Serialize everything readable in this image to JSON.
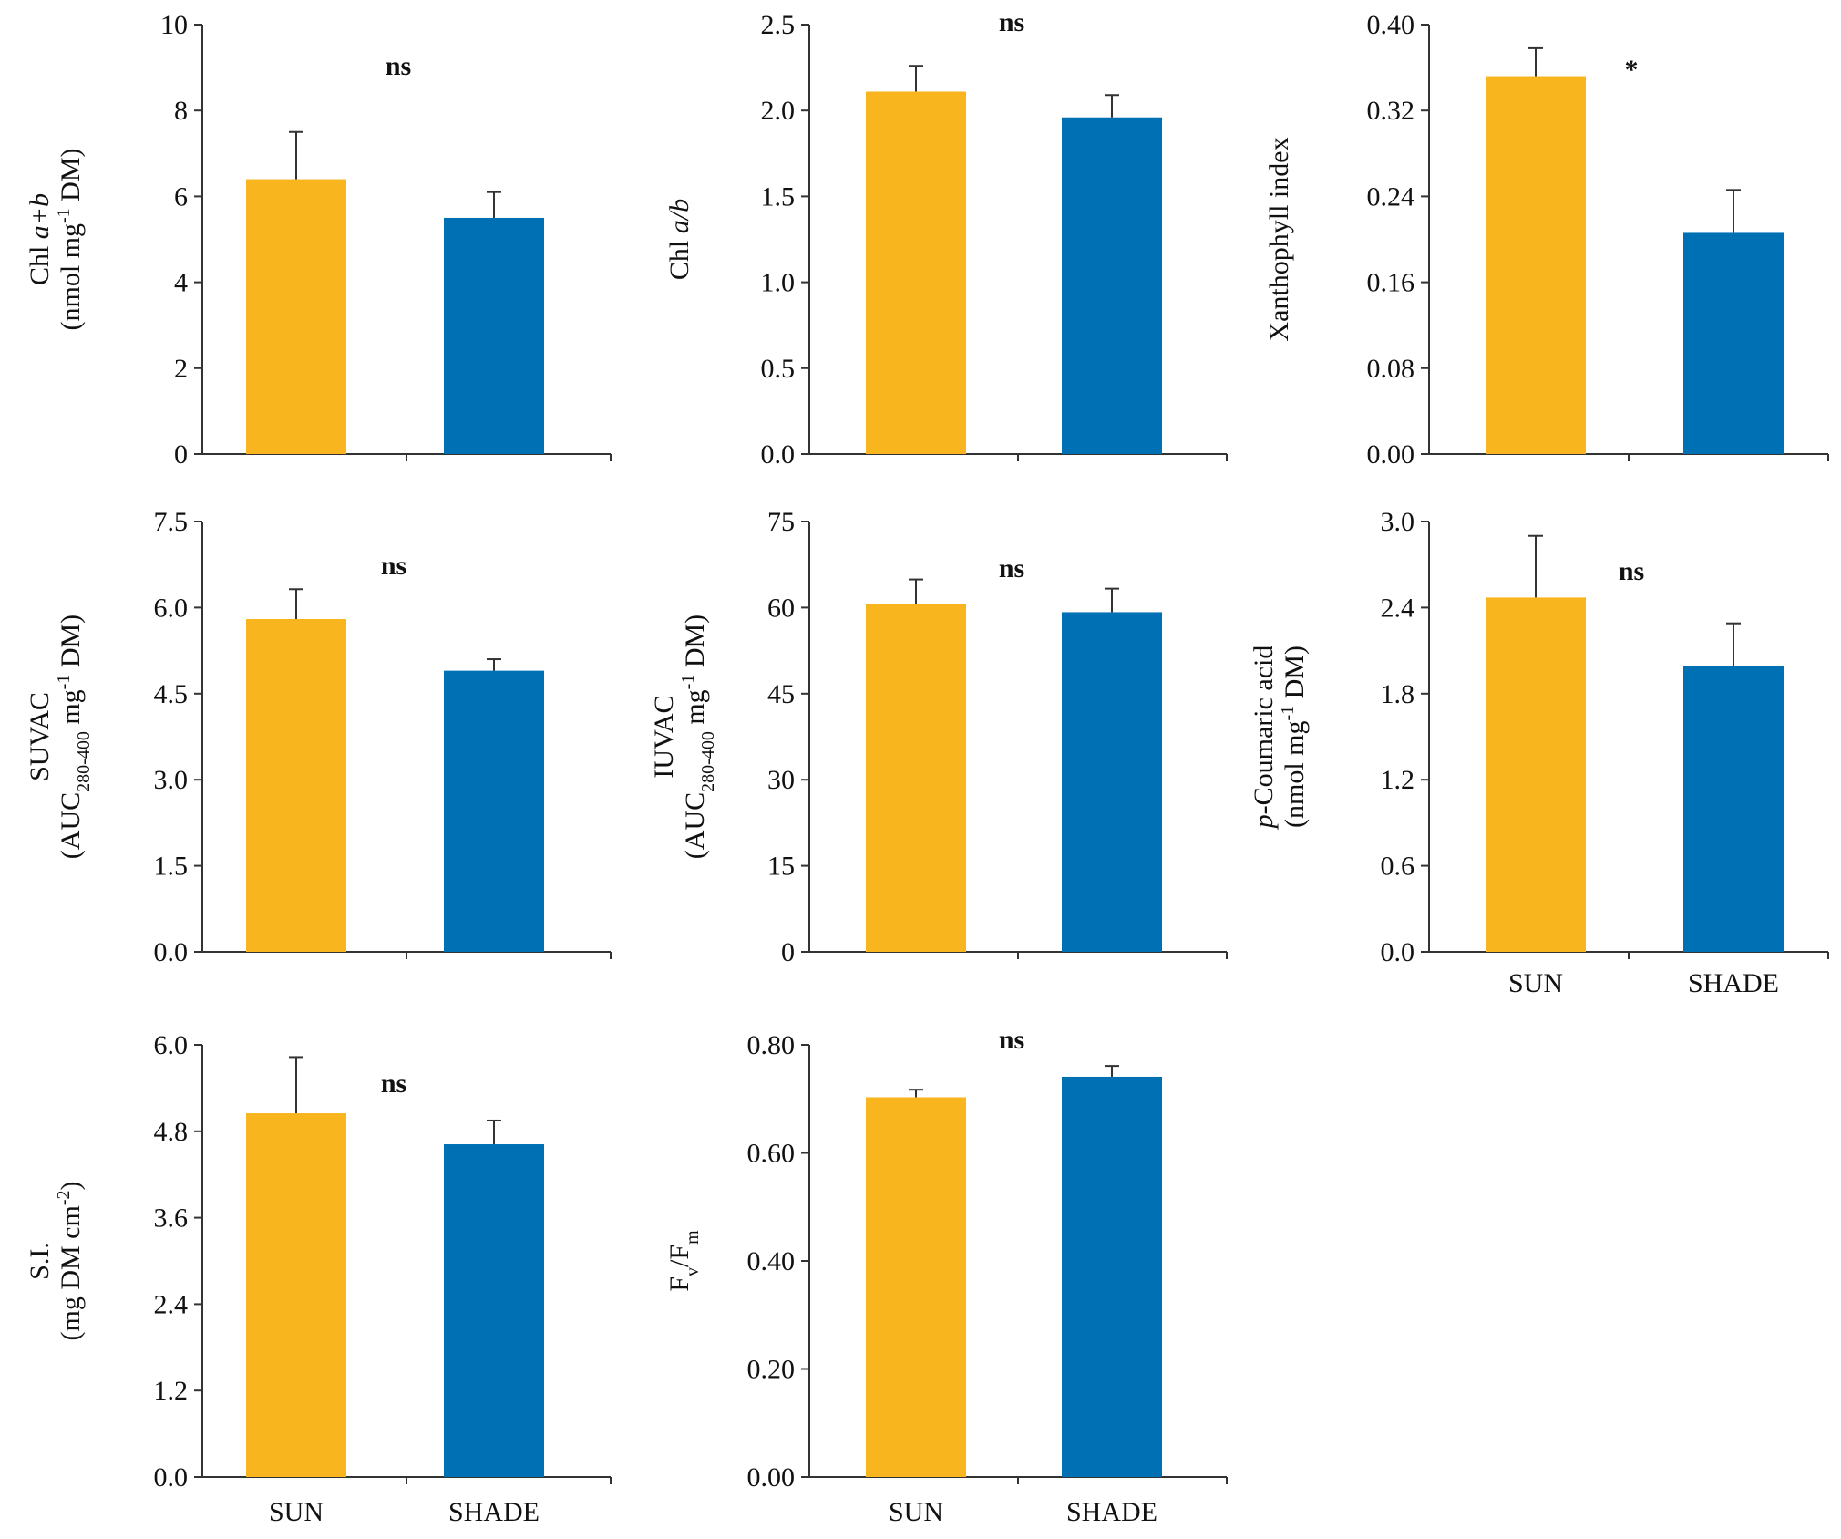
{
  "figure": {
    "categories": [
      "SUN",
      "SHADE"
    ],
    "colors": {
      "SUN": "#F9B51E",
      "SHADE": "#0070B5"
    }
  },
  "chart_data": [
    {
      "type": "bar",
      "id": "chl-ab",
      "ylabel": {
        "lines": [
          [
            {
              "t": "Chl "
            },
            {
              "t": "a+b",
              "s": "i"
            }
          ],
          [
            {
              "t": "(nmol mg"
            },
            {
              "t": "-1",
              "s": "sup"
            },
            {
              "t": " DM)"
            }
          ]
        ]
      },
      "categories": [
        "SUN",
        "SHADE"
      ],
      "values": [
        6.4,
        5.5
      ],
      "errors": [
        1.1,
        0.6
      ],
      "ylim": [
        0,
        10
      ],
      "yticks": [
        "0",
        "2",
        "4",
        "6",
        "8",
        "10"
      ],
      "significance": "ns",
      "show_categories": false
    },
    {
      "type": "bar",
      "id": "chl-a-b",
      "ylabel": {
        "lines": [
          [
            {
              "t": "Chl "
            },
            {
              "t": "a/b",
              "s": "i"
            }
          ]
        ]
      },
      "categories": [
        "SUN",
        "SHADE"
      ],
      "values": [
        2.11,
        1.96
      ],
      "errors": [
        0.15,
        0.13
      ],
      "ylim": [
        0,
        2.5
      ],
      "yticks": [
        "0.0",
        "0.5",
        "1.0",
        "1.5",
        "2.0",
        "2.5"
      ],
      "significance": "ns",
      "show_categories": false
    },
    {
      "type": "bar",
      "id": "xanthophyll",
      "ylabel": {
        "lines": [
          [
            {
              "t": "Xanthophyll  index"
            }
          ]
        ]
      },
      "categories": [
        "SUN",
        "SHADE"
      ],
      "values": [
        0.352,
        0.206
      ],
      "errors": [
        0.026,
        0.04
      ],
      "ylim": [
        0,
        0.4
      ],
      "yticks": [
        "0.00",
        "0.08",
        "0.16",
        "0.24",
        "0.32",
        "0.40"
      ],
      "significance": "*",
      "show_categories": false
    },
    {
      "type": "bar",
      "id": "suvac",
      "ylabel": {
        "lines": [
          [
            {
              "t": "SUVAC"
            }
          ],
          [
            {
              "t": "(AUC"
            },
            {
              "t": "280-400",
              "s": "sub"
            },
            {
              "t": "  mg"
            },
            {
              "t": "-1",
              "s": "sup"
            },
            {
              "t": " DM)"
            }
          ]
        ]
      },
      "categories": [
        "SUN",
        "SHADE"
      ],
      "values": [
        5.8,
        4.9
      ],
      "errors": [
        0.52,
        0.2
      ],
      "ylim": [
        0,
        7.5
      ],
      "yticks": [
        "0.0",
        "1.5",
        "3.0",
        "4.5",
        "6.0",
        "7.5"
      ],
      "significance": "ns",
      "show_categories": false
    },
    {
      "type": "bar",
      "id": "iuvac",
      "ylabel": {
        "lines": [
          [
            {
              "t": "IUVAC"
            }
          ],
          [
            {
              "t": "(AUC"
            },
            {
              "t": "280-400",
              "s": "sub"
            },
            {
              "t": "  mg"
            },
            {
              "t": "-1",
              "s": "sup"
            },
            {
              "t": " DM)"
            }
          ]
        ]
      },
      "categories": [
        "SUN",
        "SHADE"
      ],
      "values": [
        60.6,
        59.2
      ],
      "errors": [
        4.3,
        4.1
      ],
      "ylim": [
        0,
        75
      ],
      "yticks": [
        "0",
        "15",
        "30",
        "45",
        "60",
        "75"
      ],
      "significance": "ns",
      "show_categories": false
    },
    {
      "type": "bar",
      "id": "coumaric",
      "ylabel": {
        "lines": [
          [
            {
              "t": "p",
              "s": "i"
            },
            {
              "t": "-Coumaric acid"
            }
          ],
          [
            {
              "t": "(nmol mg"
            },
            {
              "t": "-1",
              "s": "sup"
            },
            {
              "t": " DM)"
            }
          ]
        ]
      },
      "categories": [
        "SUN",
        "SHADE"
      ],
      "values": [
        2.47,
        1.99
      ],
      "errors": [
        0.43,
        0.3
      ],
      "ylim": [
        0,
        3.0
      ],
      "yticks": [
        "0.0",
        "0.6",
        "1.2",
        "1.8",
        "2.4",
        "3.0"
      ],
      "significance": "ns",
      "show_categories": true
    },
    {
      "type": "bar",
      "id": "si",
      "ylabel": {
        "lines": [
          [
            {
              "t": "S.I."
            }
          ],
          [
            {
              "t": "(mg DM cm"
            },
            {
              "t": "-2",
              "s": "sup"
            },
            {
              "t": ")"
            }
          ]
        ]
      },
      "categories": [
        "SUN",
        "SHADE"
      ],
      "values": [
        5.05,
        4.62
      ],
      "errors": [
        0.78,
        0.33
      ],
      "ylim": [
        0,
        6.0
      ],
      "yticks": [
        "0.0",
        "1.2",
        "2.4",
        "3.6",
        "4.8",
        "6.0"
      ],
      "significance": "ns",
      "show_categories": true
    },
    {
      "type": "bar",
      "id": "fvfm",
      "ylabel": {
        "lines": [
          [
            {
              "t": "F"
            },
            {
              "t": "v",
              "s": "sub"
            },
            {
              "t": "/F"
            },
            {
              "t": "m",
              "s": "sub"
            }
          ]
        ]
      },
      "categories": [
        "SUN",
        "SHADE"
      ],
      "values": [
        0.703,
        0.741
      ],
      "errors": [
        0.014,
        0.02
      ],
      "ylim": [
        0,
        0.8
      ],
      "yticks": [
        "0.00",
        "0.20",
        "0.40",
        "0.60",
        "0.80"
      ],
      "significance": "ns",
      "show_categories": true
    }
  ]
}
